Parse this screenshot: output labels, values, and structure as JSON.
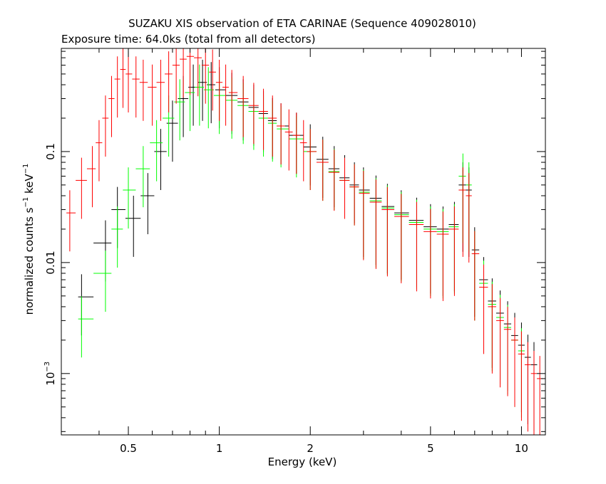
{
  "chart_data": {
    "type": "scatter",
    "title": "SUZAKU XIS observation of ETA CARINAE (Sequence 409028010)",
    "subtitle": "Exposure time: 64.0ks (total from all detectors)",
    "xlabel": "Energy (keV)",
    "ylabel": {
      "main": "normalized counts s",
      "sup1": "−1",
      "mid": " keV",
      "sup2": "−1"
    },
    "x_scale": "log",
    "y_scale": "log",
    "xlim": [
      0.3,
      12
    ],
    "ylim": [
      0.00028,
      0.85
    ],
    "x_ticks": [
      {
        "value": 0.5,
        "label": "0.5"
      },
      {
        "value": 1,
        "label": "1"
      },
      {
        "value": 2,
        "label": "2"
      },
      {
        "value": 5,
        "label": "5"
      },
      {
        "value": 10,
        "label": "10"
      }
    ],
    "y_ticks": [
      {
        "value": 0.001,
        "base": "10",
        "exp": "−3",
        "label": ""
      },
      {
        "value": 0.01,
        "base": "",
        "exp": "",
        "label": "0.01"
      },
      {
        "value": 0.1,
        "base": "",
        "exp": "",
        "label": "0.1"
      }
    ],
    "grid": false,
    "legend": "none",
    "series": [
      {
        "color": "#ff0000",
        "points": [
          [
            0.32,
            0.028
          ],
          [
            0.35,
            0.055
          ],
          [
            0.38,
            0.07
          ],
          [
            0.4,
            0.12
          ],
          [
            0.42,
            0.2
          ],
          [
            0.44,
            0.3
          ],
          [
            0.46,
            0.45
          ],
          [
            0.48,
            0.55
          ],
          [
            0.5,
            0.5
          ],
          [
            0.53,
            0.45
          ],
          [
            0.56,
            0.42
          ],
          [
            0.6,
            0.38
          ],
          [
            0.64,
            0.42
          ],
          [
            0.68,
            0.5
          ],
          [
            0.72,
            0.6
          ],
          [
            0.76,
            0.68
          ],
          [
            0.8,
            0.72
          ],
          [
            0.85,
            0.7
          ],
          [
            0.9,
            0.6
          ],
          [
            0.95,
            0.52
          ],
          [
            1.0,
            0.42
          ],
          [
            1.05,
            0.38
          ],
          [
            1.1,
            0.34
          ],
          [
            1.2,
            0.3
          ],
          [
            1.3,
            0.26
          ],
          [
            1.4,
            0.23
          ],
          [
            1.5,
            0.2
          ],
          [
            1.6,
            0.17
          ],
          [
            1.7,
            0.15
          ],
          [
            1.8,
            0.14
          ],
          [
            1.9,
            0.12
          ],
          [
            2.0,
            0.1
          ],
          [
            2.2,
            0.08
          ],
          [
            2.4,
            0.065
          ],
          [
            2.6,
            0.055
          ],
          [
            2.8,
            0.048
          ],
          [
            3.0,
            0.042
          ],
          [
            3.3,
            0.035
          ],
          [
            3.6,
            0.03
          ],
          [
            4.0,
            0.026
          ],
          [
            4.5,
            0.022
          ],
          [
            5.0,
            0.019
          ],
          [
            5.5,
            0.018
          ],
          [
            6.0,
            0.02
          ],
          [
            6.4,
            0.045
          ],
          [
            6.7,
            0.04
          ],
          [
            7.0,
            0.012
          ],
          [
            7.5,
            0.006
          ],
          [
            8.0,
            0.004
          ],
          [
            8.5,
            0.003
          ],
          [
            9.0,
            0.0025
          ],
          [
            9.5,
            0.002
          ],
          [
            10.0,
            0.0015
          ],
          [
            10.5,
            0.0012
          ],
          [
            11.0,
            0.001
          ],
          [
            11.5,
            0.0009
          ]
        ]
      },
      {
        "color": "#000000",
        "points": [
          [
            0.35,
            0.0049
          ],
          [
            0.42,
            0.015
          ],
          [
            0.46,
            0.03
          ],
          [
            0.52,
            0.025
          ],
          [
            0.58,
            0.04
          ],
          [
            0.64,
            0.1
          ],
          [
            0.7,
            0.18
          ],
          [
            0.76,
            0.3
          ],
          [
            0.82,
            0.38
          ],
          [
            0.88,
            0.42
          ],
          [
            0.94,
            0.4
          ],
          [
            1.0,
            0.36
          ],
          [
            1.1,
            0.32
          ],
          [
            1.2,
            0.28
          ],
          [
            1.3,
            0.25
          ],
          [
            1.4,
            0.22
          ],
          [
            1.5,
            0.19
          ],
          [
            1.6,
            0.17
          ],
          [
            1.8,
            0.14
          ],
          [
            2.0,
            0.11
          ],
          [
            2.2,
            0.085
          ],
          [
            2.4,
            0.07
          ],
          [
            2.6,
            0.058
          ],
          [
            2.8,
            0.05
          ],
          [
            3.0,
            0.045
          ],
          [
            3.3,
            0.038
          ],
          [
            3.6,
            0.032
          ],
          [
            4.0,
            0.028
          ],
          [
            4.5,
            0.024
          ],
          [
            5.0,
            0.021
          ],
          [
            5.5,
            0.02
          ],
          [
            6.0,
            0.022
          ],
          [
            6.4,
            0.05
          ],
          [
            6.7,
            0.045
          ],
          [
            7.0,
            0.013
          ],
          [
            7.5,
            0.007
          ],
          [
            8.0,
            0.0045
          ],
          [
            8.5,
            0.0035
          ],
          [
            9.0,
            0.0028
          ],
          [
            9.5,
            0.0022
          ],
          [
            10.0,
            0.0018
          ],
          [
            10.5,
            0.0014
          ],
          [
            11.0,
            0.0012
          ]
        ]
      },
      {
        "color": "#00ff00",
        "points": [
          [
            0.35,
            0.0031
          ],
          [
            0.42,
            0.008
          ],
          [
            0.46,
            0.02
          ],
          [
            0.5,
            0.045
          ],
          [
            0.56,
            0.07
          ],
          [
            0.62,
            0.12
          ],
          [
            0.68,
            0.2
          ],
          [
            0.74,
            0.28
          ],
          [
            0.8,
            0.34
          ],
          [
            0.86,
            0.38
          ],
          [
            0.92,
            0.36
          ],
          [
            1.0,
            0.32
          ],
          [
            1.1,
            0.29
          ],
          [
            1.2,
            0.26
          ],
          [
            1.3,
            0.23
          ],
          [
            1.4,
            0.2
          ],
          [
            1.5,
            0.18
          ],
          [
            1.6,
            0.16
          ],
          [
            1.8,
            0.13
          ],
          [
            2.0,
            0.1
          ],
          [
            2.2,
            0.08
          ],
          [
            2.4,
            0.066
          ],
          [
            2.6,
            0.055
          ],
          [
            2.8,
            0.048
          ],
          [
            3.0,
            0.043
          ],
          [
            3.3,
            0.036
          ],
          [
            3.6,
            0.031
          ],
          [
            4.0,
            0.027
          ],
          [
            4.5,
            0.023
          ],
          [
            5.0,
            0.02
          ],
          [
            5.5,
            0.019
          ],
          [
            6.0,
            0.021
          ],
          [
            6.4,
            0.06
          ],
          [
            6.7,
            0.05
          ],
          [
            7.0,
            0.012
          ],
          [
            7.5,
            0.0065
          ],
          [
            8.0,
            0.0042
          ],
          [
            8.5,
            0.0032
          ],
          [
            9.0,
            0.0026
          ],
          [
            9.5,
            0.002
          ],
          [
            10.0,
            0.0016
          ]
        ]
      }
    ]
  }
}
